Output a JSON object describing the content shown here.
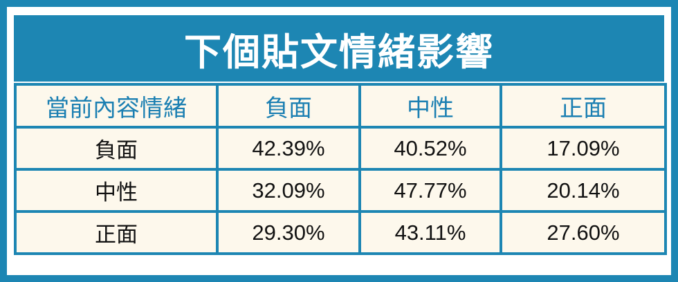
{
  "title": "下個貼文情緒影響",
  "table": {
    "header": [
      "當前內容情緒",
      "負面",
      "中性",
      "正面"
    ],
    "rows": [
      [
        "負面",
        "42.39%",
        "40.52%",
        "17.09%"
      ],
      [
        "中性",
        "32.09%",
        "47.77%",
        "20.14%"
      ],
      [
        "正面",
        "29.30%",
        "43.11%",
        "27.60%"
      ]
    ]
  }
}
